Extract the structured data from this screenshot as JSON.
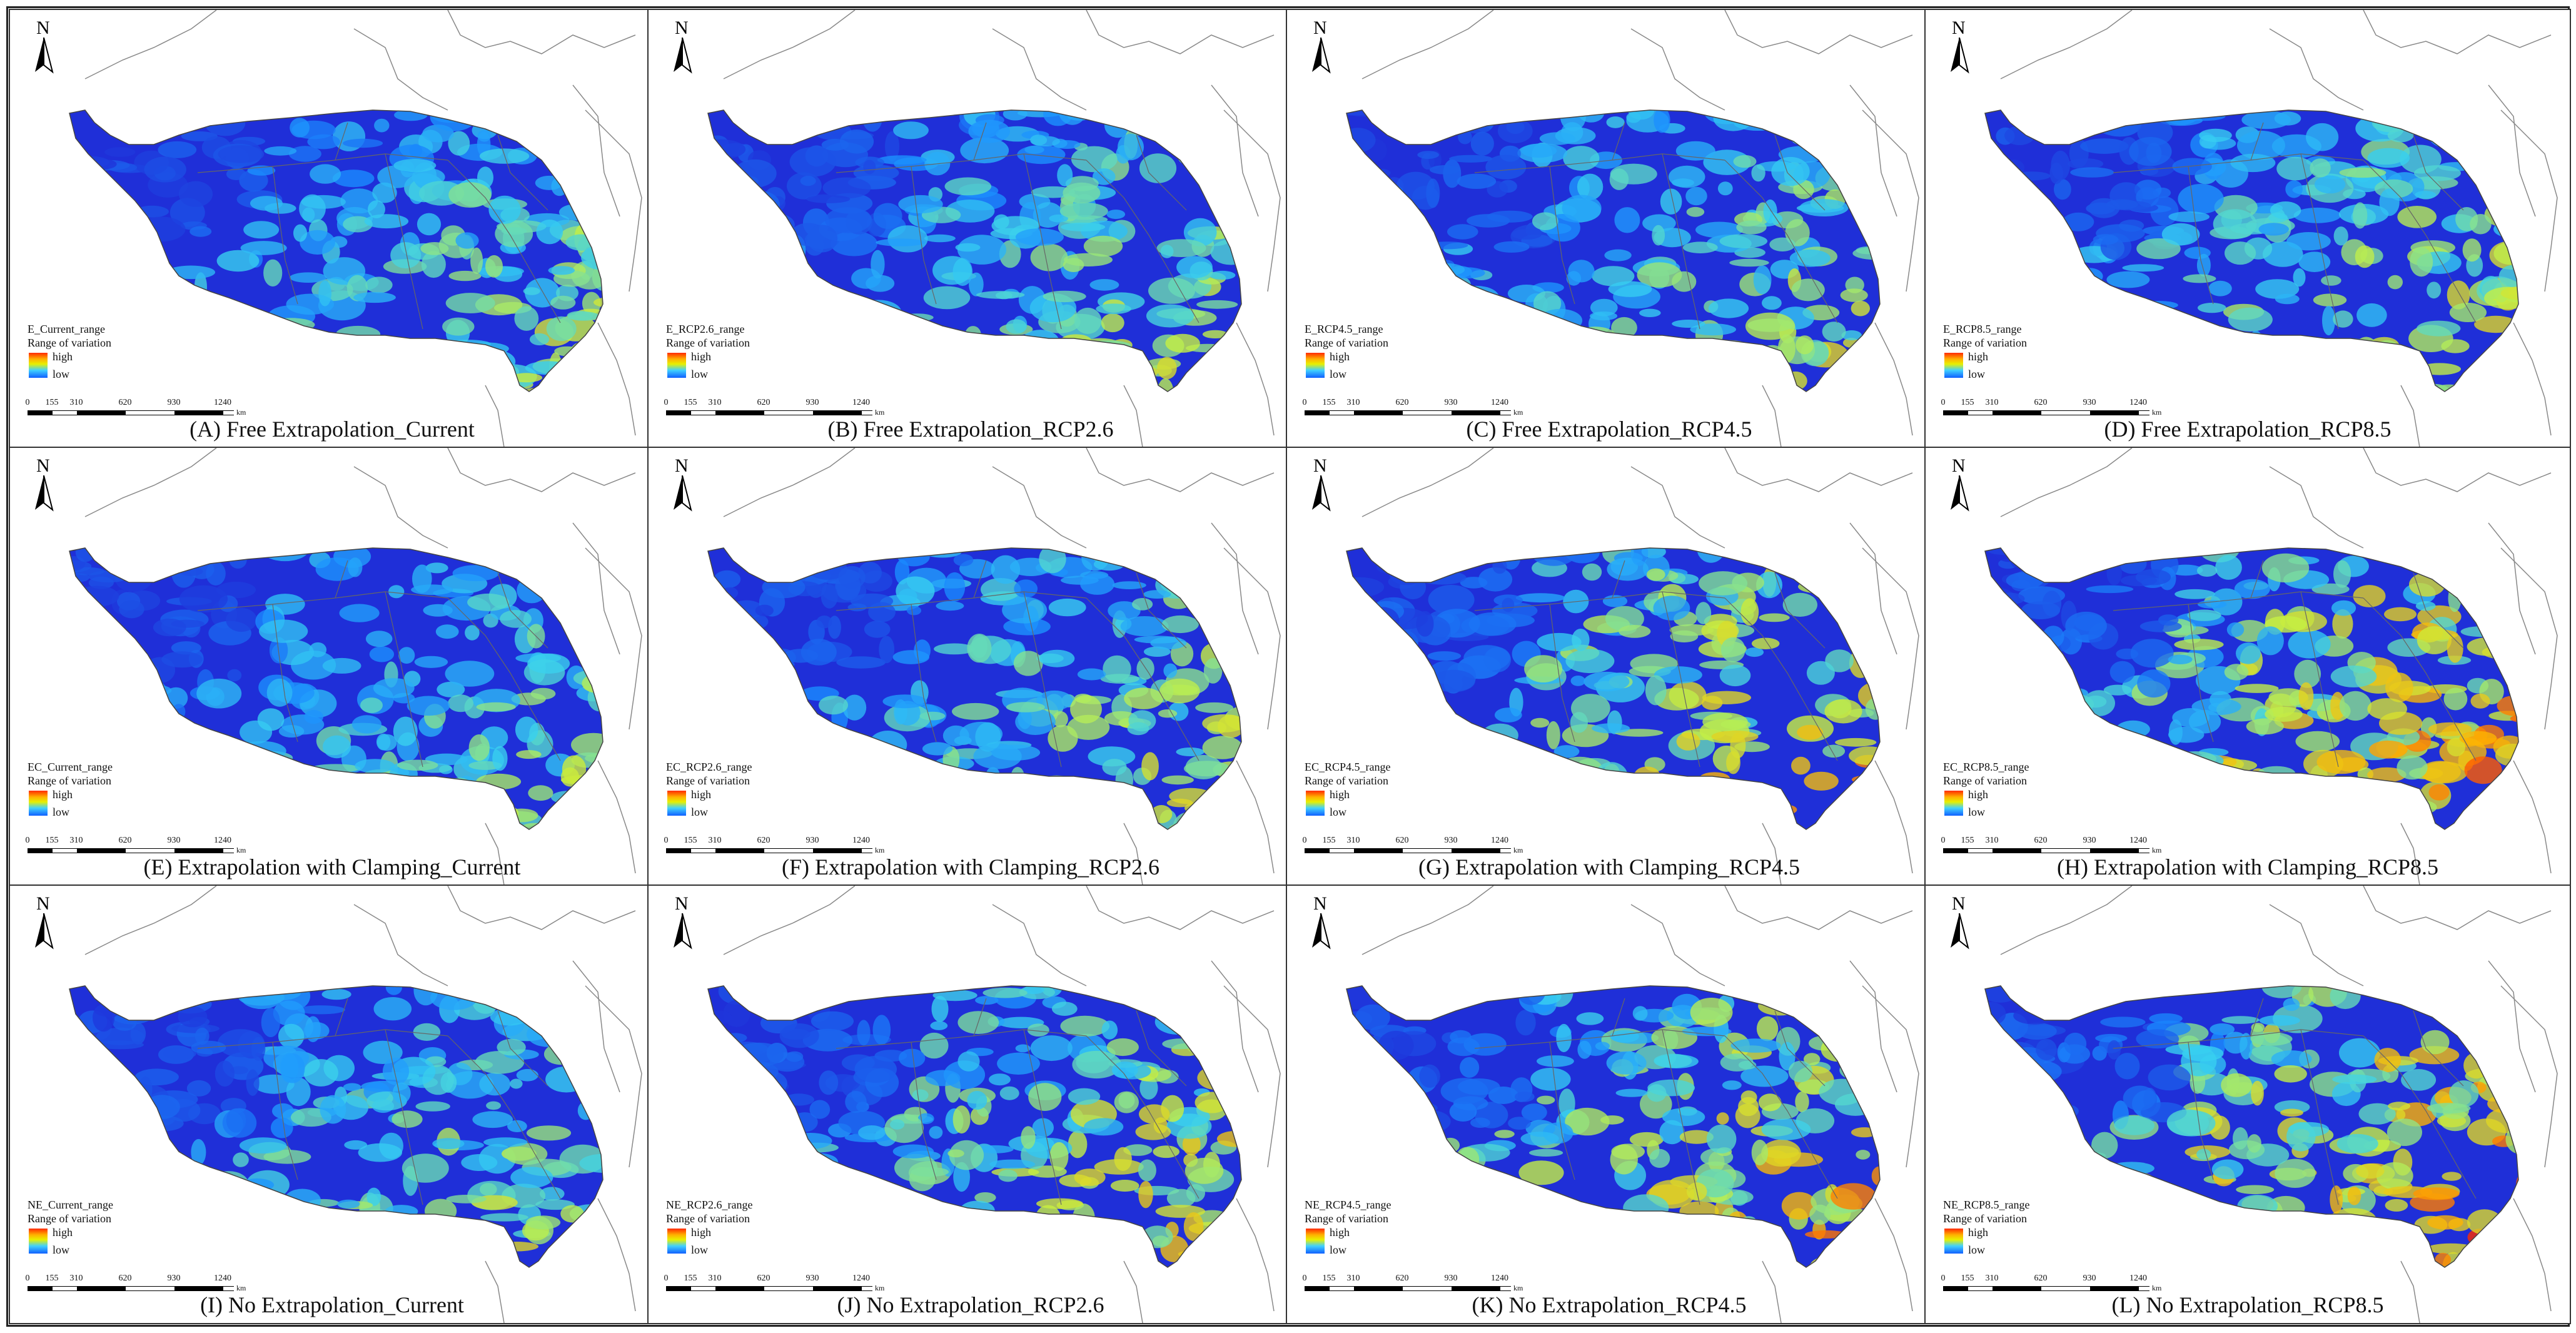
{
  "colors": {
    "low": "#1f2fd8",
    "mid_low": "#1a8cff",
    "mid": "#38d0f0",
    "mid_high": "#c8f040",
    "high": "#ffb000",
    "very_high": "#ff2a00",
    "boundary": "#555555",
    "frame": "#222222"
  },
  "legend_common": {
    "subtitle": "Range of variation",
    "high": "high",
    "low": "low"
  },
  "north_label": "N",
  "scale": {
    "labels": [
      "0",
      "155",
      "310",
      "620",
      "930",
      "1240"
    ],
    "unit": "km"
  },
  "panels": [
    {
      "caption": "(A) Free Extrapolation_Current",
      "legend_title": "E_Current_range",
      "intensity": 0.25
    },
    {
      "caption": "(B) Free Extrapolation_RCP2.6",
      "legend_title": "E_RCP2.6_range",
      "intensity": 0.3
    },
    {
      "caption": "(C) Free Extrapolation_RCP4.5",
      "legend_title": "E_RCP4.5_range",
      "intensity": 0.3
    },
    {
      "caption": "(D) Free Extrapolation_RCP8.5",
      "legend_title": "E_RCP8.5_range",
      "intensity": 0.35
    },
    {
      "caption": "(E) Extrapolation with Clamping_Current",
      "legend_title": "EC_Current_range",
      "intensity": 0.2
    },
    {
      "caption": "(F) Extrapolation with Clamping_RCP2.6",
      "legend_title": "EC_RCP2.6_range",
      "intensity": 0.3
    },
    {
      "caption": "(G) Extrapolation with Clamping_RCP4.5",
      "legend_title": "EC_RCP4.5_range",
      "intensity": 0.55
    },
    {
      "caption": "(H) Extrapolation with Clamping_RCP8.5",
      "legend_title": "EC_RCP8.5_range",
      "intensity": 0.65
    },
    {
      "caption": "(I) No Extrapolation_Current",
      "legend_title": "NE_Current_range",
      "intensity": 0.3
    },
    {
      "caption": "(J) No Extrapolation_RCP2.6",
      "legend_title": "NE_RCP2.6_range",
      "intensity": 0.45
    },
    {
      "caption": "(K) No Extrapolation_RCP4.5",
      "legend_title": "NE_RCP4.5_range",
      "intensity": 0.55
    },
    {
      "caption": "(L) No Extrapolation_RCP8.5",
      "legend_title": "NE_RCP8.5_range",
      "intensity": 0.7
    }
  ]
}
